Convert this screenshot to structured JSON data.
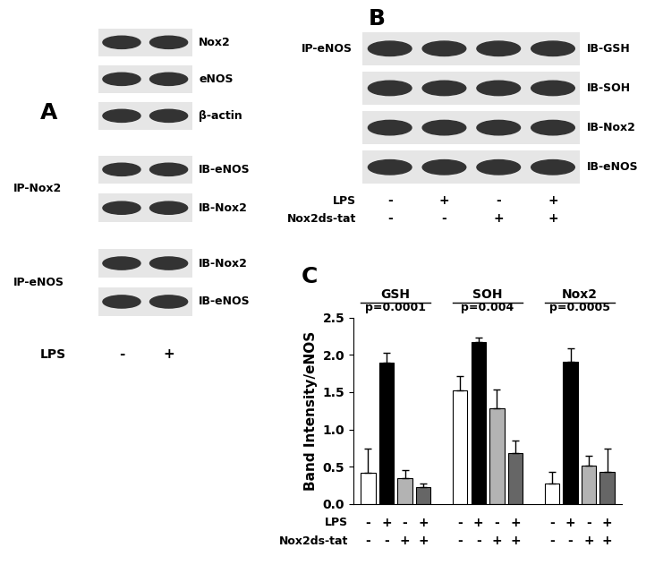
{
  "panel_A": {
    "label": "A",
    "lysate_blots": [
      "Nox2",
      "eNOS",
      "β-actin"
    ],
    "ip_blocks": [
      {
        "ip": "IP-Nox2",
        "blots": [
          "IB-eNOS",
          "IB-Nox2"
        ]
      },
      {
        "ip": "IP-eNOS",
        "blots": [
          "IB-Nox2",
          "IB-eNOS"
        ]
      }
    ],
    "conditions": [
      {
        "label": "LPS",
        "signs": [
          "-",
          "+"
        ]
      }
    ]
  },
  "panel_B": {
    "label": "B",
    "ip": "IP-eNOS",
    "blots": [
      "IB-GSH",
      "IB-SOH",
      "IB-Nox2",
      "IB-eNOS"
    ],
    "conditions": [
      {
        "label": "LPS",
        "signs": [
          "-",
          "+",
          "-",
          "+"
        ]
      },
      {
        "label": "Nox2ds-tat",
        "signs": [
          "-",
          "-",
          "+",
          "+"
        ]
      }
    ]
  },
  "chart_data": {
    "type": "bar",
    "panel_label": "C",
    "ylabel": "Band Intensity/eNOS",
    "categories": [
      "GSH",
      "SOH",
      "Nox2"
    ],
    "annotations": [
      "p=0.0001",
      "p=0.004",
      "p=0.0005"
    ],
    "series": [
      {
        "color": "#ffffff",
        "values": [
          0.42,
          1.52,
          0.28
        ],
        "errors": [
          0.32,
          0.19,
          0.15
        ]
      },
      {
        "color": "#000000",
        "values": [
          1.89,
          2.17,
          1.91
        ],
        "errors": [
          0.14,
          0.06,
          0.18
        ]
      },
      {
        "color": "#b3b3b3",
        "values": [
          0.35,
          1.28,
          0.52
        ],
        "errors": [
          0.1,
          0.25,
          0.13
        ]
      },
      {
        "color": "#666666",
        "values": [
          0.23,
          0.68,
          0.43
        ],
        "errors": [
          0.04,
          0.17,
          0.31
        ]
      }
    ],
    "conditions": [
      {
        "label": "LPS",
        "signs": [
          "-",
          "+",
          "-",
          "+"
        ]
      },
      {
        "label": "Nox2ds-tat",
        "signs": [
          "-",
          "-",
          "+",
          "+"
        ]
      }
    ],
    "ylim": [
      0.0,
      2.5
    ],
    "yticks": [
      0.0,
      0.5,
      1.0,
      1.5,
      2.0,
      2.5
    ]
  }
}
